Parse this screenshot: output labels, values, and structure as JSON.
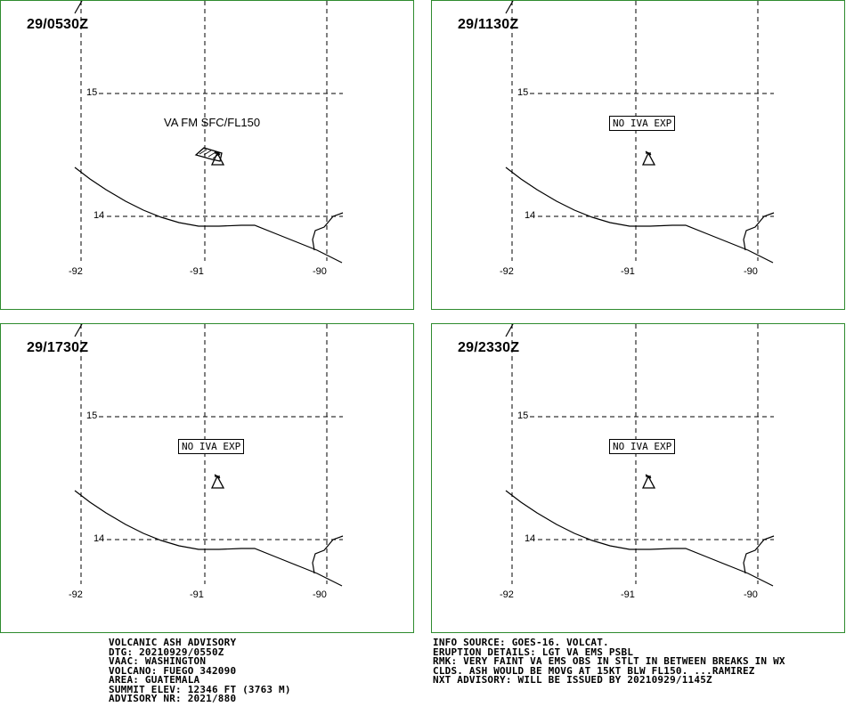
{
  "panels": [
    {
      "time": "29/0530Z",
      "ash_label": "VA FM SFC/FL150",
      "ash_polygon": true
    },
    {
      "time": "29/1130Z",
      "ash_label": "NO IVA EXP",
      "ash_polygon": false
    },
    {
      "time": "29/1730Z",
      "ash_label": "NO IVA EXP",
      "ash_polygon": false
    },
    {
      "time": "29/2330Z",
      "ash_label": "NO IVA EXP",
      "ash_polygon": false
    }
  ],
  "grid": {
    "lat_labels": [
      "15",
      "14"
    ],
    "lon_labels": [
      "-92",
      "-91",
      "-90"
    ]
  },
  "colors": {
    "panel_border": "#2e8b2e",
    "lines": "#000000",
    "background": "#ffffff"
  },
  "icons": {
    "volcano": "volcano-triangle-icon"
  },
  "advisory_left": [
    "VOLCANIC ASH ADVISORY",
    "DTG: 20210929/0550Z",
    "VAAC: WASHINGTON",
    "VOLCANO: FUEGO 342090",
    "AREA: GUATEMALA",
    "SUMMIT ELEV: 12346 FT (3763 M)",
    "ADVISORY NR: 2021/880"
  ],
  "advisory_right": [
    "INFO SOURCE: GOES-16. VOLCAT.",
    "ERUPTION DETAILS: LGT VA EMS PSBL",
    "RMK: VERY FAINT VA EMS OBS IN STLT IN BETWEEN BREAKS IN WX",
    "CLDS. ASH WOULD BE MOVG AT 15KT BLW FL150. ...RAMIREZ",
    "NXT ADVISORY: WILL BE ISSUED BY 20210929/1145Z"
  ]
}
